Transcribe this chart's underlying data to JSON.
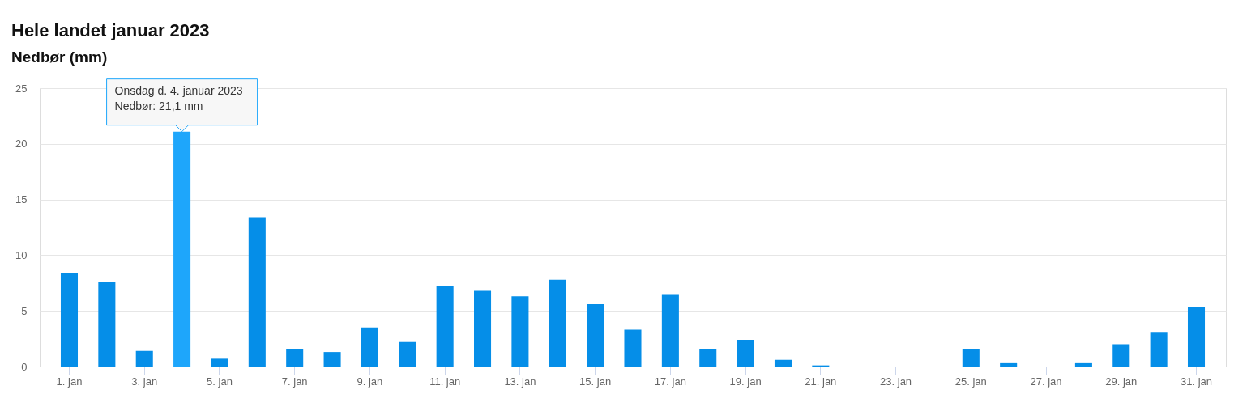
{
  "chart_data": {
    "type": "bar",
    "title": "Hele landet januar 2023",
    "subtitle": "Nedbør (mm)",
    "categories": [
      "1. jan",
      null,
      "3. jan",
      null,
      "5. jan",
      null,
      "7. jan",
      null,
      "9. jan",
      null,
      "11. jan",
      null,
      "13. jan",
      null,
      "15. jan",
      null,
      "17. jan",
      null,
      "19. jan",
      null,
      "21. jan",
      null,
      "23. jan",
      null,
      "25. jan",
      null,
      "27. jan",
      null,
      "29. jan",
      null,
      "31. jan"
    ],
    "values": [
      8.4,
      7.6,
      1.4,
      21.1,
      0.7,
      13.4,
      1.6,
      1.3,
      3.5,
      2.2,
      7.2,
      6.8,
      6.3,
      7.8,
      5.6,
      3.3,
      6.5,
      1.6,
      2.4,
      0.6,
      0.1,
      0,
      0,
      0,
      1.6,
      0.3,
      0,
      0.3,
      2.0,
      3.1,
      5.3
    ],
    "colors": [
      "#058ee8",
      "#058ee8",
      "#058ee8",
      "#1ea6fb",
      "#058ee8",
      "#058ee8",
      "#058ee8",
      "#058ee8",
      "#058ee8",
      "#058ee8",
      "#058ee8",
      "#058ee8",
      "#058ee8",
      "#058ee8",
      "#058ee8",
      "#058ee8",
      "#058ee8",
      "#058ee8",
      "#058ee8",
      "#058ee8",
      "#058ee8",
      "#058ee8",
      "#058ee8",
      "#058ee8",
      "#058ee8",
      "#058ee8",
      "#058ee8",
      "#058ee8",
      "#058ee8",
      "#058ee8",
      "#058ee8"
    ],
    "ylim": [
      0,
      25
    ],
    "yticks": [
      0,
      5,
      10,
      15,
      20,
      25
    ],
    "grid": "y",
    "annotations": [
      {
        "text": "Onsdag d. 4. januar 2023\nNedbør: 21,1 mm",
        "y": 21.1
      }
    ]
  }
}
